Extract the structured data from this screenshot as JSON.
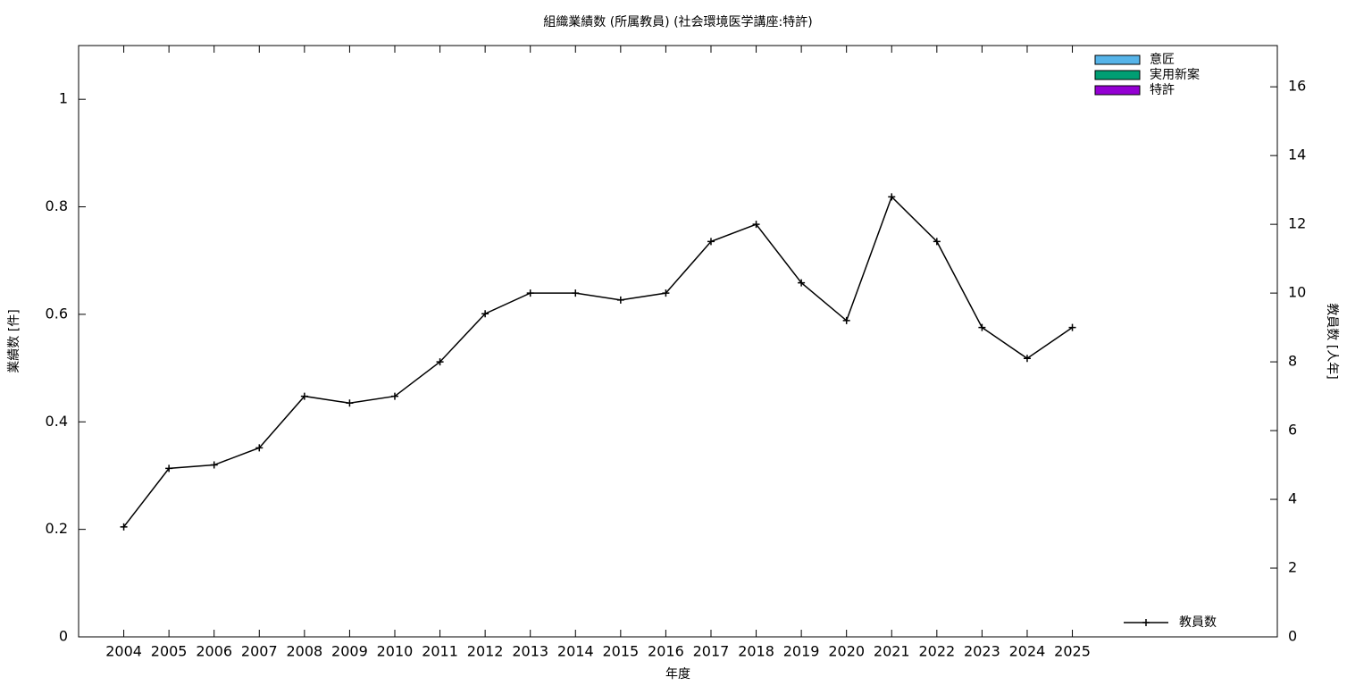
{
  "chart_data": {
    "type": "bar-line",
    "title": "組織業績数 (所属教員) (社会環境医学講座:特許)",
    "x_label": "年度",
    "y_label": "業績数 [件]",
    "y2_label": "教員数 [人年]",
    "categories": [
      "2004",
      "2005",
      "2006",
      "2007",
      "2008",
      "2009",
      "2010",
      "2011",
      "2012",
      "2013",
      "2014",
      "2015",
      "2016",
      "2017",
      "2018",
      "2019",
      "2020",
      "2021",
      "2022",
      "2023",
      "2024",
      "2025"
    ],
    "series": [
      {
        "name": "意匠",
        "color": "#56b4e9",
        "values": [
          0,
          0,
          0,
          0,
          0,
          0,
          0,
          0,
          0,
          0,
          0,
          0,
          0,
          0,
          0,
          0,
          0,
          0,
          0,
          0,
          0,
          0
        ]
      },
      {
        "name": "実用新案",
        "color": "#009e73",
        "values": [
          0,
          0,
          0,
          0,
          0,
          0,
          0,
          0,
          0,
          0,
          0,
          0,
          0,
          0,
          0,
          0,
          0,
          0,
          0,
          0,
          0,
          0
        ]
      },
      {
        "name": "特許",
        "color": "#9400d3",
        "values": [
          0,
          0,
          0,
          0,
          0,
          0,
          0,
          0,
          0,
          0,
          0,
          0,
          0,
          0,
          0,
          0,
          0,
          0,
          0,
          0,
          0,
          0
        ]
      },
      {
        "name": "教員数",
        "color": "#000000",
        "axis": "y2",
        "values": [
          3.2,
          4.9,
          5.0,
          5.5,
          7.0,
          6.8,
          7.0,
          8.0,
          9.4,
          10.0,
          10.0,
          9.8,
          10.0,
          11.5,
          12.0,
          10.3,
          9.2,
          12.8,
          11.5,
          9.0,
          8.1,
          9.0
        ]
      }
    ],
    "ylim": [
      0,
      1.1
    ],
    "yticks": [
      0,
      0.2,
      0.4,
      0.6,
      0.8,
      1
    ],
    "y2lim": [
      0,
      17.2
    ],
    "y2ticks": [
      0,
      2,
      4,
      6,
      8,
      10,
      12,
      14,
      16
    ],
    "grid": false
  }
}
